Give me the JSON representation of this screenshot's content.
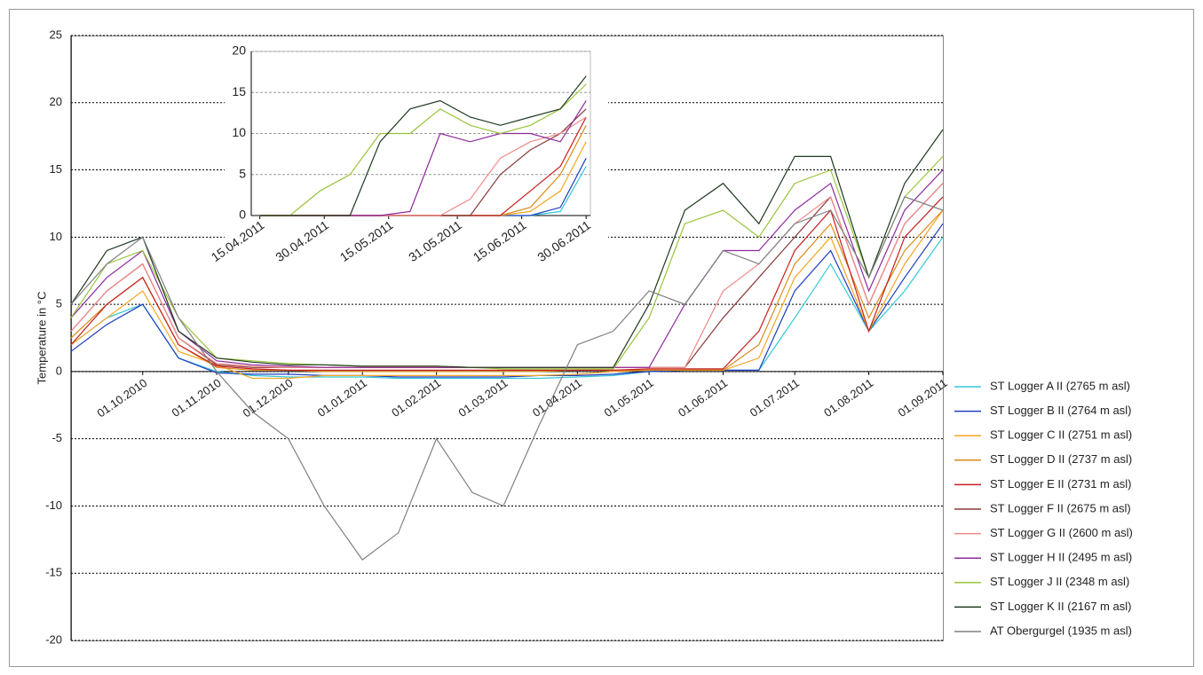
{
  "chart_data": [
    {
      "type": "line",
      "y_label": "Temperature in °C",
      "grid": true,
      "legend": "right",
      "x": [
        "2010-09-01",
        "2010-09-16",
        "2010-10-01",
        "2010-10-16",
        "2010-11-01",
        "2010-11-16",
        "2010-12-01",
        "2010-12-16",
        "2011-01-01",
        "2011-01-16",
        "2011-02-01",
        "2011-02-16",
        "2011-03-01",
        "2011-03-16",
        "2011-04-01",
        "2011-04-16",
        "2011-05-01",
        "2011-05-16",
        "2011-06-01",
        "2011-06-16",
        "2011-07-01",
        "2011-07-16",
        "2011-08-01",
        "2011-08-16",
        "2011-09-01"
      ],
      "xlim": [
        "2010-09-01",
        "2011-09-01"
      ],
      "xticks": [
        {
          "value": "2010-10-01",
          "label": "01.10.2010"
        },
        {
          "value": "2010-11-01",
          "label": "01.11.2010"
        },
        {
          "value": "2010-12-01",
          "label": "01.12.2010"
        },
        {
          "value": "2011-01-01",
          "label": "01.01.2011"
        },
        {
          "value": "2011-02-01",
          "label": "01.02.2011"
        },
        {
          "value": "2011-03-01",
          "label": "01.03.2011"
        },
        {
          "value": "2011-04-01",
          "label": "01.04.2011"
        },
        {
          "value": "2011-05-01",
          "label": "01.05.2011"
        },
        {
          "value": "2011-06-01",
          "label": "01.06.2011"
        },
        {
          "value": "2011-07-01",
          "label": "01.07.2011"
        },
        {
          "value": "2011-08-01",
          "label": "01.08.2011"
        },
        {
          "value": "2011-09-01",
          "label": "01.09.2011"
        }
      ],
      "ylim": [
        -20,
        25
      ],
      "yticks": [
        -20,
        -15,
        -10,
        -5,
        0,
        5,
        10,
        15,
        20,
        25
      ],
      "series": [
        {
          "name": "ST Logger A II (2765 m asl)",
          "color": "#33c7d9",
          "values": [
            2,
            4,
            5,
            1,
            0,
            -0.3,
            -0.4,
            -0.4,
            -0.4,
            -0.5,
            -0.5,
            -0.5,
            -0.5,
            -0.5,
            -0.4,
            -0.3,
            0,
            0.1,
            0.1,
            0.1,
            4,
            8,
            3,
            6,
            10
          ]
        },
        {
          "name": "ST Logger B II (2764 m asl)",
          "color": "#1f3fbf",
          "values": [
            1.5,
            3.5,
            5,
            1,
            -0.1,
            -0.2,
            -0.2,
            -0.3,
            -0.3,
            -0.4,
            -0.4,
            -0.4,
            -0.4,
            -0.3,
            -0.3,
            -0.2,
            0,
            0.1,
            0.1,
            0.1,
            6,
            9,
            3,
            7,
            11
          ]
        },
        {
          "name": "ST Logger C II (2751 m asl)",
          "color": "#f5a623",
          "values": [
            2,
            4,
            6,
            1.5,
            0.5,
            -0.5,
            -0.5,
            -0.3,
            -0.3,
            -0.3,
            -0.3,
            -0.3,
            -0.3,
            -0.3,
            -0.2,
            0,
            0.1,
            0.1,
            0.1,
            1,
            7,
            10,
            3,
            8,
            12
          ]
        },
        {
          "name": "ST Logger D II (2737 m asl)",
          "color": "#d98c1a",
          "values": [
            2.5,
            5,
            7,
            2,
            0.3,
            0.1,
            0.1,
            0,
            0,
            0,
            0,
            0,
            0,
            0,
            0.1,
            0.1,
            0.1,
            0.1,
            0.1,
            2,
            8,
            11,
            4,
            9,
            12
          ]
        },
        {
          "name": "ST Logger E II (2731 m asl)",
          "color": "#c81e1e",
          "values": [
            2,
            5,
            7,
            2,
            0.4,
            0.2,
            0.1,
            0.1,
            0.1,
            0.1,
            0.1,
            0.1,
            0.1,
            0.1,
            0.1,
            0.1,
            0.2,
            0.2,
            0.2,
            3,
            9,
            12,
            3,
            10,
            13
          ]
        },
        {
          "name": "ST Logger F II (2675 m asl)",
          "color": "#8b3a3a",
          "values": [
            3,
            6,
            8,
            2.5,
            0.5,
            0.3,
            0.3,
            0.3,
            0.3,
            0.3,
            0.3,
            0.3,
            0.3,
            0.3,
            0.3,
            0.3,
            0.3,
            0.3,
            4,
            7,
            10,
            13,
            5,
            11,
            14
          ]
        },
        {
          "name": "ST Logger G II (2600 m asl)",
          "color": "#f08a8a",
          "values": [
            3,
            6,
            8,
            2.5,
            0.6,
            0.4,
            0.3,
            0.3,
            0.3,
            0.3,
            0.3,
            0.3,
            0.3,
            0.3,
            0.3,
            0.3,
            0.3,
            0.3,
            6,
            8,
            11,
            13,
            5,
            11,
            14
          ]
        },
        {
          "name": "ST Logger H II (2495 m asl)",
          "color": "#8e2c9e",
          "values": [
            4,
            7,
            9,
            3,
            0.8,
            0.5,
            0.4,
            0.3,
            0.3,
            0.3,
            0.3,
            0.3,
            0.3,
            0.3,
            0.3,
            0.3,
            0.3,
            5,
            9,
            9,
            12,
            14,
            6,
            12,
            15
          ]
        },
        {
          "name": "ST Logger J II (2348 m asl)",
          "color": "#99c43a",
          "values": [
            4,
            8,
            9,
            4,
            1,
            0.8,
            0.6,
            0.5,
            0.4,
            0.4,
            0.4,
            0.3,
            0.2,
            0.2,
            0.2,
            0.2,
            4,
            11,
            12,
            10,
            14,
            15,
            7,
            13,
            16
          ]
        },
        {
          "name": "ST Logger K II (2167 m asl)",
          "color": "#1f3a1f",
          "values": [
            5,
            9,
            10,
            3,
            1,
            0.7,
            0.5,
            0.5,
            0.4,
            0.4,
            0.4,
            0.3,
            0.3,
            0.3,
            0.3,
            0.3,
            5,
            12,
            14,
            11,
            16,
            16,
            7,
            14,
            18
          ]
        },
        {
          "name": "AT Obergurgel (1935 m asl)",
          "color": "#808080",
          "values": [
            5,
            8,
            10,
            4,
            0,
            -3,
            -5,
            -10,
            -14,
            -12,
            -5,
            -9,
            -10,
            -4,
            2,
            3,
            6,
            5,
            9,
            8,
            11,
            12,
            7,
            13,
            12
          ]
        }
      ]
    },
    {
      "type": "line",
      "grid": true,
      "x": [
        "2011-04-15",
        "2011-04-22",
        "2011-04-29",
        "2011-05-06",
        "2011-05-13",
        "2011-05-20",
        "2011-05-27",
        "2011-06-03",
        "2011-06-10",
        "2011-06-17",
        "2011-06-24",
        "2011-06-30"
      ],
      "xlim": [
        "2011-04-13",
        "2011-07-01"
      ],
      "xticks": [
        {
          "value": "2011-04-15",
          "label": "15.04.2011"
        },
        {
          "value": "2011-04-30",
          "label": "30.04.2011"
        },
        {
          "value": "2011-05-15",
          "label": "15.05.2011"
        },
        {
          "value": "2011-05-31",
          "label": "31.05.2011"
        },
        {
          "value": "2011-06-15",
          "label": "15.06.2011"
        },
        {
          "value": "2011-06-30",
          "label": "30.06.2011"
        }
      ],
      "ylim": [
        0,
        20
      ],
      "yticks": [
        0,
        5,
        10,
        15,
        20
      ],
      "series": [
        {
          "color": "#33c7d9",
          "values": [
            0,
            0,
            0,
            0,
            0,
            0,
            0,
            0,
            0,
            0,
            0.5,
            6
          ]
        },
        {
          "color": "#1f3fbf",
          "values": [
            0,
            0,
            0,
            0,
            0,
            0,
            0,
            0,
            0,
            0,
            1,
            7
          ]
        },
        {
          "color": "#f5a623",
          "values": [
            0,
            0,
            0,
            0,
            0,
            0,
            0,
            0,
            0,
            0.5,
            3,
            9
          ]
        },
        {
          "color": "#d98c1a",
          "values": [
            0,
            0,
            0,
            0,
            0,
            0,
            0,
            0,
            0,
            1,
            5,
            11
          ]
        },
        {
          "color": "#c81e1e",
          "values": [
            0,
            0,
            0,
            0,
            0,
            0,
            0,
            0,
            0,
            3,
            6,
            12
          ]
        },
        {
          "color": "#8b3a3a",
          "values": [
            0,
            0,
            0,
            0,
            0,
            0,
            0,
            0,
            5,
            8,
            10,
            13
          ]
        },
        {
          "color": "#f08a8a",
          "values": [
            0,
            0,
            0,
            0,
            0,
            0,
            0,
            2,
            7,
            9,
            10,
            12
          ]
        },
        {
          "color": "#8e2c9e",
          "values": [
            0,
            0,
            0,
            0,
            0,
            0.5,
            10,
            9,
            10,
            10,
            9,
            14
          ]
        },
        {
          "color": "#99c43a",
          "values": [
            0,
            0,
            3,
            5,
            10,
            10,
            13,
            11,
            10,
            11,
            13,
            16
          ]
        },
        {
          "color": "#1f3a1f",
          "values": [
            0,
            0,
            0,
            0,
            9,
            13,
            14,
            12,
            11,
            12,
            13,
            17
          ]
        }
      ]
    }
  ]
}
